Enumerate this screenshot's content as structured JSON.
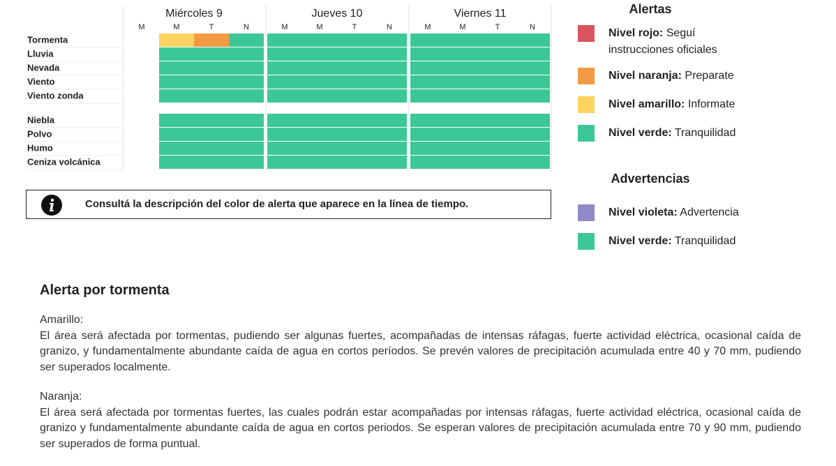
{
  "timeline": {
    "days": [
      {
        "name": "Miércoles 9",
        "periods": [
          "M",
          "M",
          "T",
          "N"
        ]
      },
      {
        "name": "Jueves 10",
        "periods": [
          "M",
          "M",
          "T",
          "N"
        ]
      },
      {
        "name": "Viernes 11",
        "periods": [
          "M",
          "M",
          "T",
          "N"
        ]
      }
    ],
    "groups": [
      [
        {
          "name": "Tormenta",
          "cells": [
            null,
            2,
            1,
            3,
            3,
            3,
            3,
            3,
            3,
            3,
            3,
            3
          ]
        },
        {
          "name": "Lluvia",
          "cells": [
            null,
            3,
            3,
            3,
            3,
            3,
            3,
            3,
            3,
            3,
            3,
            3
          ]
        },
        {
          "name": "Nevada",
          "cells": [
            null,
            3,
            3,
            3,
            3,
            3,
            3,
            3,
            3,
            3,
            3,
            3
          ]
        },
        {
          "name": "Viento",
          "cells": [
            null,
            3,
            3,
            3,
            3,
            3,
            3,
            3,
            3,
            3,
            3,
            3
          ]
        },
        {
          "name": "Viento zonda",
          "cells": [
            null,
            3,
            3,
            3,
            3,
            3,
            3,
            3,
            3,
            3,
            3,
            3
          ]
        }
      ],
      [
        {
          "name": "Niebla",
          "cells": [
            null,
            3,
            3,
            3,
            3,
            3,
            3,
            3,
            3,
            3,
            3,
            3
          ]
        },
        {
          "name": "Polvo",
          "cells": [
            null,
            3,
            3,
            3,
            3,
            3,
            3,
            3,
            3,
            3,
            3,
            3
          ]
        },
        {
          "name": "Humo",
          "cells": [
            null,
            3,
            3,
            3,
            3,
            3,
            3,
            3,
            3,
            3,
            3,
            3
          ]
        },
        {
          "name": "Ceniza volcánica",
          "cells": [
            null,
            3,
            3,
            3,
            3,
            3,
            3,
            3,
            3,
            3,
            3,
            3
          ]
        }
      ]
    ]
  },
  "info": "Consultá la descripción del color de alerta que aparece en la línea de tiempo.",
  "alerts": {
    "title": "Alertas",
    "items": [
      {
        "level": "Nivel rojo:",
        "text": "Seguí instrucciones oficiales",
        "color": "#d9545f"
      },
      {
        "level": "Nivel naranja:",
        "text": "Preparate",
        "color": "#f39a45"
      },
      {
        "level": "Nivel amarillo:",
        "text": "Informate",
        "color": "#fdd35f"
      },
      {
        "level": "Nivel verde:",
        "text": "Tranquilidad",
        "color": "#3cc896"
      }
    ]
  },
  "warnings": {
    "title": "Advertencias",
    "items": [
      {
        "level": "Nivel violeta:",
        "text": "Advertencia",
        "color": "#9089c9"
      },
      {
        "level": "Nivel verde:",
        "text": "Tranquilidad",
        "color": "#3cc896"
      }
    ]
  },
  "section": {
    "title": "Alerta por tormenta",
    "paragraphs": [
      {
        "label": "Amarillo:",
        "text": "El área será afectada por tormentas, pudiendo ser algunas fuertes, acompañadas de intensas ráfagas, fuerte actividad eléctrica, ocasional caída de granizo, y fundamentalmente abundante caída de agua en cortos períodos. Se prevén valores de precipitación acumulada entre 40 y 70 mm, pudiendo ser superados localmente."
      },
      {
        "label": "Naranja:",
        "text": "El área será afectada por tormentas fuertes, las cuales podrán estar acompañadas por intensas ráfagas, fuerte actividad eléctrica, ocasional caída de granizo y fundamentalmente abundante caída de agua en cortos periodos. Se esperan valores de precipitación acumulada entre 70 y 90 mm, pudiendo ser superados de forma puntual."
      }
    ]
  }
}
